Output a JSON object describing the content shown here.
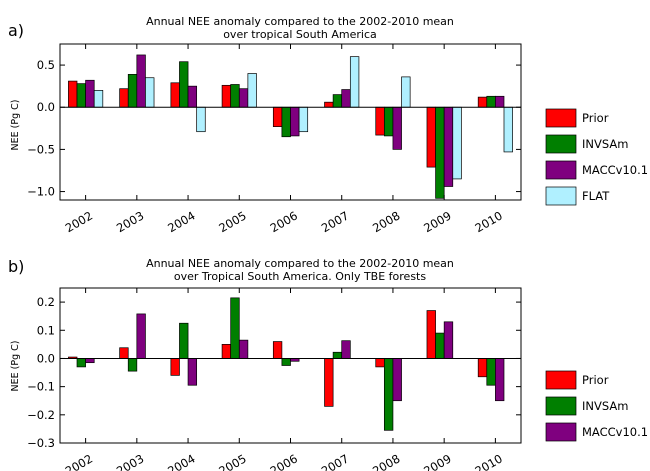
{
  "colors": {
    "Prior": "#ff0000",
    "INVSAm": "#007f00",
    "MACCv10.1": "#7f007f",
    "FLAT": "#b0f0ff"
  },
  "chart_data": [
    {
      "panel_label": "a)",
      "type": "bar",
      "title": [
        "Annual NEE anomaly compared to the 2002-2010 mean",
        "over tropical South America"
      ],
      "xlabel": "",
      "ylabel": "NEE (Pg C)",
      "ylim": [
        -1.1,
        0.75
      ],
      "yticks": [
        -1.0,
        -0.5,
        0.0,
        0.5
      ],
      "ytick_labels": [
        "−1.0",
        "−0.5",
        "0.0",
        "0.5"
      ],
      "grid": false,
      "legend_position": "right",
      "categories": [
        "2002",
        "2003",
        "2004",
        "2005",
        "2006",
        "2007",
        "2008",
        "2009",
        "2010"
      ],
      "series": [
        {
          "name": "Prior",
          "values": [
            0.31,
            0.22,
            0.29,
            0.26,
            -0.23,
            0.06,
            -0.33,
            -0.71,
            0.12
          ]
        },
        {
          "name": "INVSAm",
          "values": [
            0.28,
            0.39,
            0.54,
            0.27,
            -0.35,
            0.15,
            -0.34,
            -1.08,
            0.13
          ]
        },
        {
          "name": "MACCv10.1",
          "values": [
            0.32,
            0.62,
            0.25,
            0.22,
            -0.34,
            0.21,
            -0.5,
            -0.94,
            0.13
          ]
        },
        {
          "name": "FLAT",
          "values": [
            0.2,
            0.35,
            -0.29,
            0.4,
            -0.29,
            0.6,
            0.36,
            -0.85,
            -0.53
          ]
        }
      ]
    },
    {
      "panel_label": "b)",
      "type": "bar",
      "title": [
        "Annual NEE anomaly compared to the 2002-2010 mean",
        "over Tropical South America. Only TBE forests"
      ],
      "xlabel": "",
      "ylabel": "NEE (Pg C)",
      "ylim": [
        -0.3,
        0.25
      ],
      "yticks": [
        -0.3,
        -0.2,
        -0.1,
        0.0,
        0.1,
        0.2
      ],
      "ytick_labels": [
        "−0.3",
        "−0.2",
        "−0.1",
        "0.0",
        "0.1",
        "0.2"
      ],
      "grid": false,
      "legend_position": "right",
      "categories": [
        "2002",
        "2003",
        "2004",
        "2005",
        "2006",
        "2007",
        "2008",
        "2009",
        "2010"
      ],
      "series": [
        {
          "name": "Prior",
          "values": [
            0.005,
            0.038,
            -0.06,
            0.05,
            0.06,
            -0.17,
            -0.03,
            0.17,
            -0.065
          ]
        },
        {
          "name": "INVSAm",
          "values": [
            -0.03,
            -0.045,
            0.125,
            0.215,
            -0.025,
            0.022,
            -0.255,
            0.09,
            -0.095
          ]
        },
        {
          "name": "MACCv10.1",
          "values": [
            -0.015,
            0.158,
            -0.095,
            0.065,
            -0.01,
            0.063,
            -0.15,
            0.13,
            -0.15
          ]
        }
      ]
    }
  ]
}
